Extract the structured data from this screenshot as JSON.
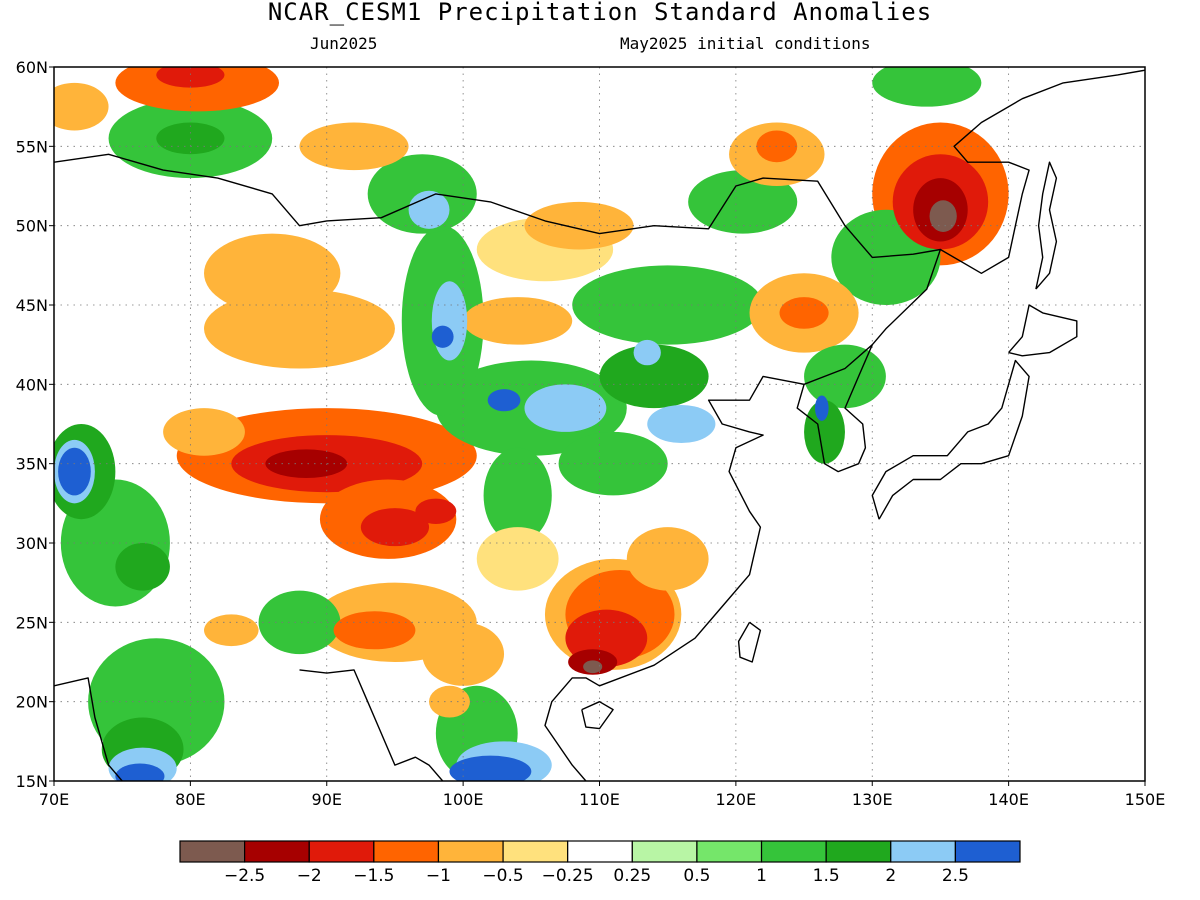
{
  "title": "NCAR_CESM1 Precipitation Standard Anomalies",
  "subtitle_left": "Jun2025",
  "subtitle_right": "May2025 initial conditions",
  "map": {
    "lon_range": [
      70,
      150
    ],
    "lat_range": [
      15,
      60
    ],
    "lon_ticks": [
      "70E",
      "80E",
      "90E",
      "100E",
      "110E",
      "120E",
      "130E",
      "140E",
      "150E"
    ],
    "lat_ticks": [
      "60N",
      "55N",
      "50N",
      "45N",
      "40N",
      "35N",
      "30N",
      "25N",
      "20N",
      "15N"
    ],
    "gridlines": "dotted",
    "coastlines": true
  },
  "colorbar": {
    "colors": [
      "#7d5a4f",
      "#a60000",
      "#e01a0a",
      "#ff6400",
      "#ffb43a",
      "#ffe17d",
      "#ffffff",
      "#b8f5a5",
      "#75e66a",
      "#35c43a",
      "#20a81e",
      "#8ccbf5",
      "#1e5fd2"
    ],
    "labels": [
      "-2.5",
      "-2",
      "-1.5",
      "-1",
      "-0.5",
      "-0.25",
      "0.25",
      "0.5",
      "1",
      "1.5",
      "2",
      "2.5"
    ]
  },
  "anomaly_blobs": [
    {
      "lon": 80.5,
      "lat": 59.0,
      "rx": 6,
      "ry": 1.8,
      "level": -1
    },
    {
      "lon": 80.0,
      "lat": 59.5,
      "rx": 2.5,
      "ry": 0.8,
      "level": -1.5
    },
    {
      "lon": 71.5,
      "lat": 57.5,
      "rx": 2.5,
      "ry": 1.5,
      "level": -0.5
    },
    {
      "lon": 80.0,
      "lat": 55.5,
      "rx": 6,
      "ry": 2.5,
      "level": 1
    },
    {
      "lon": 80.0,
      "lat": 55.5,
      "rx": 2.5,
      "ry": 1,
      "level": 1.5
    },
    {
      "lon": 86.0,
      "lat": 47.0,
      "rx": 5,
      "ry": 2.5,
      "level": -0.5
    },
    {
      "lon": 88.0,
      "lat": 43.5,
      "rx": 7,
      "ry": 2.5,
      "level": -0.5
    },
    {
      "lon": 92.0,
      "lat": 55.0,
      "rx": 4,
      "ry": 1.5,
      "level": -0.5
    },
    {
      "lon": 97.0,
      "lat": 52.0,
      "rx": 4,
      "ry": 2.5,
      "level": 1
    },
    {
      "lon": 97.5,
      "lat": 51.0,
      "rx": 1.5,
      "ry": 1.2,
      "level": 2
    },
    {
      "lon": 98.5,
      "lat": 44.0,
      "rx": 3,
      "ry": 6,
      "level": 1
    },
    {
      "lon": 99.0,
      "lat": 44.0,
      "rx": 1.3,
      "ry": 2.5,
      "level": 2
    },
    {
      "lon": 98.5,
      "lat": 43.0,
      "rx": 0.8,
      "ry": 0.7,
      "level": 2.5
    },
    {
      "lon": 106.0,
      "lat": 48.5,
      "rx": 5,
      "ry": 2,
      "level": -0.25
    },
    {
      "lon": 108.5,
      "lat": 50.0,
      "rx": 4,
      "ry": 1.5,
      "level": -0.5
    },
    {
      "lon": 104.0,
      "lat": 44.0,
      "rx": 4,
      "ry": 1.5,
      "level": -0.5
    },
    {
      "lon": 105.0,
      "lat": 38.5,
      "rx": 7,
      "ry": 3,
      "level": 1
    },
    {
      "lon": 107.5,
      "lat": 38.5,
      "rx": 3,
      "ry": 1.5,
      "level": 2
    },
    {
      "lon": 103.0,
      "lat": 39.0,
      "rx": 1.2,
      "ry": 0.7,
      "level": 2.5
    },
    {
      "lon": 114.0,
      "lat": 40.5,
      "rx": 4,
      "ry": 2,
      "level": 1.5
    },
    {
      "lon": 116.0,
      "lat": 37.5,
      "rx": 2.5,
      "ry": 1.2,
      "level": 2
    },
    {
      "lon": 111.0,
      "lat": 35.0,
      "rx": 4,
      "ry": 2,
      "level": 1
    },
    {
      "lon": 104.0,
      "lat": 33.0,
      "rx": 2.5,
      "ry": 3,
      "level": 1
    },
    {
      "lon": 113.5,
      "lat": 42.0,
      "rx": 1,
      "ry": 0.8,
      "level": 2
    },
    {
      "lon": 115.0,
      "lat": 45.0,
      "rx": 7,
      "ry": 2.5,
      "level": 1
    },
    {
      "lon": 120.5,
      "lat": 51.5,
      "rx": 4,
      "ry": 2,
      "level": 1
    },
    {
      "lon": 123.0,
      "lat": 54.5,
      "rx": 3.5,
      "ry": 2,
      "level": -0.5
    },
    {
      "lon": 123.0,
      "lat": 55.0,
      "rx": 1.5,
      "ry": 1,
      "level": -1
    },
    {
      "lon": 125.0,
      "lat": 44.5,
      "rx": 4,
      "ry": 2.5,
      "level": -0.5
    },
    {
      "lon": 125.0,
      "lat": 44.5,
      "rx": 1.8,
      "ry": 1,
      "level": -1
    },
    {
      "lon": 131.0,
      "lat": 48.0,
      "rx": 4,
      "ry": 3,
      "level": 1
    },
    {
      "lon": 135.0,
      "lat": 52.0,
      "rx": 5,
      "ry": 4.5,
      "level": -1
    },
    {
      "lon": 135.0,
      "lat": 51.5,
      "rx": 3.5,
      "ry": 3,
      "level": -1.5
    },
    {
      "lon": 135.0,
      "lat": 51.0,
      "rx": 2,
      "ry": 2,
      "level": -2
    },
    {
      "lon": 135.2,
      "lat": 50.6,
      "rx": 1,
      "ry": 1,
      "level": -2.5
    },
    {
      "lon": 134.0,
      "lat": 59.0,
      "rx": 4,
      "ry": 1.5,
      "level": 1
    },
    {
      "lon": 128.0,
      "lat": 40.5,
      "rx": 3,
      "ry": 2,
      "level": 1
    },
    {
      "lon": 126.5,
      "lat": 37.0,
      "rx": 1.5,
      "ry": 2,
      "level": 1.5
    },
    {
      "lon": 126.3,
      "lat": 38.5,
      "rx": 0.5,
      "ry": 0.8,
      "level": 2.5
    },
    {
      "lon": 90.0,
      "lat": 35.5,
      "rx": 11,
      "ry": 3,
      "level": -1
    },
    {
      "lon": 90.0,
      "lat": 35.0,
      "rx": 7,
      "ry": 1.8,
      "level": -1.5
    },
    {
      "lon": 88.5,
      "lat": 35.0,
      "rx": 3,
      "ry": 0.9,
      "level": -2
    },
    {
      "lon": 94.5,
      "lat": 31.5,
      "rx": 5,
      "ry": 2.5,
      "level": -1
    },
    {
      "lon": 95.0,
      "lat": 31.0,
      "rx": 2.5,
      "ry": 1.2,
      "level": -1.5
    },
    {
      "lon": 98.0,
      "lat": 32.0,
      "rx": 1.5,
      "ry": 0.8,
      "level": -1.5
    },
    {
      "lon": 81.0,
      "lat": 37.0,
      "rx": 3,
      "ry": 1.5,
      "level": -0.5
    },
    {
      "lon": 95.0,
      "lat": 25.0,
      "rx": 6,
      "ry": 2.5,
      "level": -0.5
    },
    {
      "lon": 93.5,
      "lat": 24.5,
      "rx": 3,
      "ry": 1.2,
      "level": -1
    },
    {
      "lon": 100.0,
      "lat": 23.0,
      "rx": 3,
      "ry": 2,
      "level": -0.5
    },
    {
      "lon": 111.0,
      "lat": 25.5,
      "rx": 5,
      "ry": 3.5,
      "level": -0.5
    },
    {
      "lon": 111.5,
      "lat": 25.5,
      "rx": 4,
      "ry": 2.8,
      "level": -1
    },
    {
      "lon": 110.5,
      "lat": 24.0,
      "rx": 3,
      "ry": 1.8,
      "level": -1.5
    },
    {
      "lon": 109.5,
      "lat": 22.5,
      "rx": 1.8,
      "ry": 0.8,
      "level": -2
    },
    {
      "lon": 109.5,
      "lat": 22.2,
      "rx": 0.7,
      "ry": 0.4,
      "level": -2.5
    },
    {
      "lon": 115.0,
      "lat": 29.0,
      "rx": 3,
      "ry": 2,
      "level": -0.5
    },
    {
      "lon": 104.0,
      "lat": 29.0,
      "rx": 3,
      "ry": 2,
      "level": -0.25
    },
    {
      "lon": 74.5,
      "lat": 30.0,
      "rx": 4,
      "ry": 4,
      "level": 1
    },
    {
      "lon": 76.5,
      "lat": 28.5,
      "rx": 2,
      "ry": 1.5,
      "level": 1.5
    },
    {
      "lon": 72.0,
      "lat": 34.5,
      "rx": 2.5,
      "ry": 3,
      "level": 1.5
    },
    {
      "lon": 71.5,
      "lat": 34.5,
      "rx": 1.5,
      "ry": 2,
      "level": 2
    },
    {
      "lon": 71.5,
      "lat": 34.5,
      "rx": 1.2,
      "ry": 1.5,
      "level": 2.5
    },
    {
      "lon": 77.5,
      "lat": 20.0,
      "rx": 5,
      "ry": 4,
      "level": 1
    },
    {
      "lon": 76.5,
      "lat": 17.0,
      "rx": 3,
      "ry": 2,
      "level": 1.5
    },
    {
      "lon": 76.5,
      "lat": 15.8,
      "rx": 2.5,
      "ry": 1.3,
      "level": 2
    },
    {
      "lon": 76.3,
      "lat": 15.3,
      "rx": 1.8,
      "ry": 0.8,
      "level": 2.5
    },
    {
      "lon": 101.0,
      "lat": 18.0,
      "rx": 3,
      "ry": 3,
      "level": 1
    },
    {
      "lon": 103.0,
      "lat": 16.0,
      "rx": 3.5,
      "ry": 1.5,
      "level": 2
    },
    {
      "lon": 102.0,
      "lat": 15.6,
      "rx": 3,
      "ry": 1,
      "level": 2.5
    },
    {
      "lon": 99.0,
      "lat": 20.0,
      "rx": 1.5,
      "ry": 1,
      "level": -0.5
    },
    {
      "lon": 88.0,
      "lat": 25.0,
      "rx": 3,
      "ry": 2,
      "level": 1
    },
    {
      "lon": 83.0,
      "lat": 24.5,
      "rx": 2,
      "ry": 1,
      "level": -0.5
    }
  ],
  "land_outline_pts": [
    [
      70,
      54
    ],
    [
      74,
      54.5
    ],
    [
      78,
      53.5
    ],
    [
      82,
      53
    ],
    [
      86,
      52
    ],
    [
      88,
      50
    ],
    [
      90,
      50.3
    ],
    [
      94,
      50.5
    ],
    [
      98,
      52
    ],
    [
      102,
      51.5
    ],
    [
      106,
      50.3
    ],
    [
      110,
      49.5
    ],
    [
      114,
      50
    ],
    [
      118,
      49.8
    ],
    [
      120,
      52.5
    ],
    [
      122,
      53
    ],
    [
      126,
      52.8
    ],
    [
      128,
      50
    ],
    [
      130,
      48
    ],
    [
      133,
      48.2
    ],
    [
      135,
      48.5
    ],
    [
      134,
      46
    ],
    [
      131,
      43.5
    ],
    [
      130,
      42.5
    ],
    [
      128,
      41
    ],
    [
      125,
      40
    ],
    [
      122,
      40.5
    ],
    [
      121,
      39
    ],
    [
      118,
      39
    ],
    [
      119,
      37.5
    ],
    [
      121,
      37
    ],
    [
      122,
      36.8
    ],
    [
      120,
      36
    ],
    [
      119.5,
      34.5
    ],
    [
      121,
      32
    ],
    [
      121.8,
      31
    ],
    [
      121,
      28
    ],
    [
      119,
      26
    ],
    [
      117,
      24
    ],
    [
      114,
      22.3
    ],
    [
      110,
      21
    ],
    [
      109,
      21.5
    ],
    [
      108,
      21.5
    ],
    [
      106.5,
      20
    ],
    [
      106,
      18.5
    ],
    [
      108,
      16
    ],
    [
      109,
      15
    ]
  ],
  "land_outline_pts2": [
    [
      70,
      21
    ],
    [
      72.5,
      21.5
    ],
    [
      73,
      19
    ],
    [
      74,
      16
    ],
    [
      75,
      15
    ]
  ],
  "land_outline_pts3": [
    [
      88,
      22
    ],
    [
      90,
      21.8
    ],
    [
      92,
      22
    ],
    [
      93,
      20
    ],
    [
      94,
      18
    ],
    [
      95,
      16
    ],
    [
      96.5,
      16.5
    ],
    [
      97.5,
      16
    ],
    [
      98.5,
      15
    ]
  ],
  "korea_pts": [
    [
      125,
      40
    ],
    [
      124.5,
      38.5
    ],
    [
      126,
      37.5
    ],
    [
      126.5,
      35
    ],
    [
      127.5,
      34.5
    ],
    [
      129,
      35
    ],
    [
      129.5,
      36
    ],
    [
      129.3,
      37.5
    ],
    [
      128,
      38.5
    ],
    [
      129,
      40.5
    ],
    [
      130,
      42.5
    ]
  ],
  "japan_pts": [
    [
      130.5,
      31.5
    ],
    [
      131.5,
      33
    ],
    [
      133,
      34
    ],
    [
      135,
      34
    ],
    [
      136.5,
      35
    ],
    [
      138,
      35
    ],
    [
      140,
      35.5
    ],
    [
      141,
      38
    ],
    [
      141.5,
      40.5
    ],
    [
      140.5,
      41.5
    ],
    [
      140,
      40
    ],
    [
      139.5,
      38.5
    ],
    [
      138.5,
      37.5
    ],
    [
      137,
      37
    ],
    [
      135.5,
      35.5
    ],
    [
      133,
      35.5
    ],
    [
      131,
      34.5
    ],
    [
      130,
      33
    ],
    [
      130.5,
      31.5
    ]
  ],
  "hokkaido_pts": [
    [
      140,
      42
    ],
    [
      141,
      43
    ],
    [
      141.5,
      45
    ],
    [
      142.5,
      44.5
    ],
    [
      145,
      44
    ],
    [
      145,
      43
    ],
    [
      143,
      42
    ],
    [
      141,
      41.8
    ],
    [
      140,
      42
    ]
  ],
  "sakhalin_pts": [
    [
      142,
      46
    ],
    [
      142.5,
      48
    ],
    [
      142.2,
      50
    ],
    [
      142.5,
      52
    ],
    [
      143,
      54
    ],
    [
      143.5,
      53
    ],
    [
      143,
      51
    ],
    [
      143.5,
      49
    ],
    [
      143,
      47
    ],
    [
      142,
      46
    ]
  ],
  "taiwan_pts": [
    [
      121,
      25
    ],
    [
      121.8,
      24.5
    ],
    [
      121.2,
      22.5
    ],
    [
      120.3,
      22.8
    ],
    [
      120.2,
      23.8
    ],
    [
      121,
      25
    ]
  ],
  "hainan_pts": [
    [
      108.7,
      19.5
    ],
    [
      110,
      20
    ],
    [
      111,
      19.5
    ],
    [
      110,
      18.3
    ],
    [
      109,
      18.4
    ],
    [
      108.7,
      19.5
    ]
  ],
  "east_coast_pts": [
    [
      135,
      48.5
    ],
    [
      138,
      47
    ],
    [
      140,
      48
    ],
    [
      140.5,
      50
    ],
    [
      141,
      52
    ],
    [
      141.5,
      53.5
    ],
    [
      140,
      54
    ],
    [
      137,
      54
    ],
    [
      136,
      55
    ],
    [
      138,
      56.5
    ],
    [
      141,
      58
    ],
    [
      144,
      59
    ],
    [
      148,
      59.5
    ],
    [
      150,
      59.8
    ]
  ]
}
